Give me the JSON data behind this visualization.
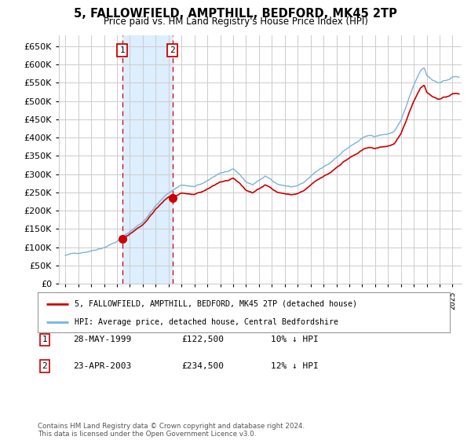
{
  "title": "5, FALLOWFIELD, AMPTHILL, BEDFORD, MK45 2TP",
  "subtitle": "Price paid vs. HM Land Registry's House Price Index (HPI)",
  "hpi_label": "HPI: Average price, detached house, Central Bedfordshire",
  "price_label": "5, FALLOWFIELD, AMPTHILL, BEDFORD, MK45 2TP (detached house)",
  "legend_color_price": "#cc0000",
  "legend_color_hpi": "#7ab3d9",
  "sale1_date": "28-MAY-1999",
  "sale1_price": 122500,
  "sale1_pct": "10% ↓ HPI",
  "sale1_year": 1999.41,
  "sale2_date": "23-APR-2003",
  "sale2_price": 234500,
  "sale2_pct": "12% ↓ HPI",
  "sale2_year": 2003.3,
  "ylim_min": 0,
  "ylim_max": 680000,
  "yticks": [
    0,
    50000,
    100000,
    150000,
    200000,
    250000,
    300000,
    350000,
    400000,
    450000,
    500000,
    550000,
    600000,
    650000
  ],
  "xlim_start": 1994.5,
  "xlim_end": 2025.7,
  "background_color": "#ffffff",
  "grid_color": "#cccccc",
  "shaded_region_color": "#ddeeff",
  "footer_text": "Contains HM Land Registry data © Crown copyright and database right 2024.\nThis data is licensed under the Open Government Licence v3.0."
}
